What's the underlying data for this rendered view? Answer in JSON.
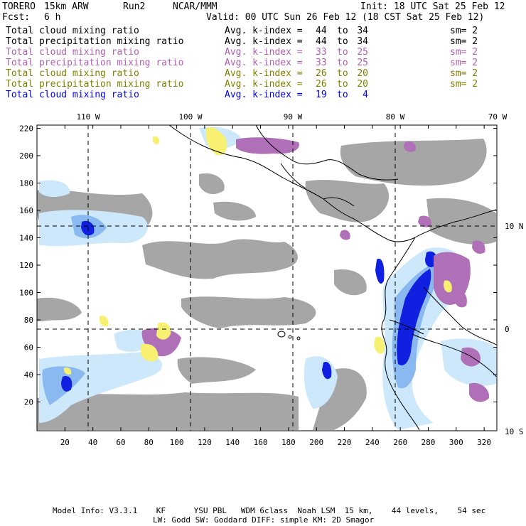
{
  "header": {
    "model": "TORERO",
    "resolution": "15km ARW",
    "run": "Run2",
    "org": "NCAR/MMM",
    "init": "Init: 18 UTC Sat 25 Feb 12",
    "fcst_label": "Fcst:",
    "fcst_value": "6 h",
    "valid": "Valid: 00 UTC Sun 26 Feb 12 (18 CST Sat 25 Feb 12)"
  },
  "legend": [
    {
      "field": "Total cloud mixing ratio",
      "label": "Avg. k-index =",
      "from": "44",
      "to_word": "to",
      "to": "34",
      "sm": "sm= 2",
      "color": "#000000"
    },
    {
      "field": "Total precipitation mixing ratio",
      "label": "Avg. k-index =",
      "from": "44",
      "to_word": "to",
      "to": "34",
      "sm": "sm= 2",
      "color": "#000000"
    },
    {
      "field": "Total cloud mixing ratio",
      "label": "Avg. k-index =",
      "from": "33",
      "to_word": "to",
      "to": "25",
      "sm": "sm= 2",
      "color": "#b060b0"
    },
    {
      "field": "Total precipitation mixing ratio",
      "label": "Avg. k-index =",
      "from": "33",
      "to_word": "to",
      "to": "25",
      "sm": "sm= 2",
      "color": "#b060b0"
    },
    {
      "field": "Total cloud mixing ratio",
      "label": "Avg. k-index =",
      "from": "26",
      "to_word": "to",
      "to": "20",
      "sm": "sm= 2",
      "color": "#808000"
    },
    {
      "field": "Total precipitation mixing ratio",
      "label": "Avg. k-index =",
      "from": "26",
      "to_word": "to",
      "to": "20",
      "sm": "sm= 2",
      "color": "#808000"
    },
    {
      "field": "Total cloud mixing ratio",
      "label": "Avg. k-index =",
      "from": "19",
      "to_word": "to",
      "to": "4",
      "sm": "",
      "color": "#0000ff"
    }
  ],
  "map": {
    "lon_labels": [
      "110 W",
      "100 W",
      "90 W",
      "80 W",
      "70 W"
    ],
    "lat_labels": [
      "10 N",
      "0",
      "10 S"
    ],
    "y_ticks": [
      "220",
      "200",
      "180",
      "160",
      "140",
      "120",
      "100",
      "80",
      "60",
      "40",
      "20"
    ],
    "x_ticks": [
      "20",
      "40",
      "60",
      "80",
      "100",
      "120",
      "140",
      "160",
      "180",
      "200",
      "220",
      "240",
      "260",
      "280",
      "300",
      "320"
    ],
    "colors": {
      "gray": "#a6a6a6",
      "purple": "#b070b8",
      "yellow": "#f8f070",
      "light_blue": "#cde8fa",
      "mid_blue": "#8ab8f0",
      "blue": "#1020e0"
    }
  },
  "footer": {
    "line1": "Model Info: V3.3.1    KF      YSU PBL   WDM 6class  Noah LSM  15 km,    44 levels,    54 sec",
    "line2": "LW: Godd SW: Goddard DIFF: simple KM: 2D Smagor"
  }
}
